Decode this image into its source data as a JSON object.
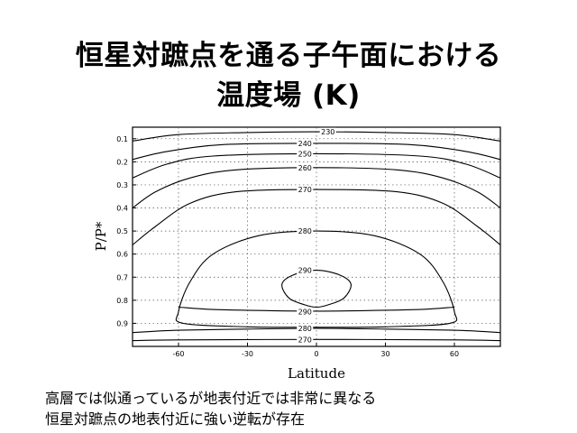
{
  "slide": {
    "title_line1": "恒星対蹠点を通る子午面における",
    "title_line2": "温度場 (K)",
    "note_line1": "高層では似通っているが地表付近では非常に異なる",
    "note_line2": "恒星対蹠点の地表付近に強い逆転が存在"
  },
  "chart_data": {
    "type": "contour",
    "title": "",
    "xlabel": "Latitude",
    "ylabel": "P/P*",
    "xlim": [
      -80,
      80
    ],
    "ylim": [
      1.0,
      0.05
    ],
    "y_inverted": true,
    "grid": true,
    "x_ticks": [
      -60,
      -30,
      0,
      30,
      60
    ],
    "y_ticks": [
      0.1,
      0.2,
      0.3,
      0.4,
      0.5,
      0.6,
      0.7,
      0.8,
      0.9
    ],
    "y_tick_labels": [
      "0.1",
      "0.2",
      "0.3",
      "0.4",
      "0.5",
      "0.6",
      "0.7",
      "0.8",
      "0.9"
    ],
    "contours": [
      {
        "level": 230,
        "label": "230",
        "points": [
          [
            -80,
            0.11
          ],
          [
            -60,
            0.082
          ],
          [
            -30,
            0.073
          ],
          [
            0,
            0.07
          ],
          [
            30,
            0.073
          ],
          [
            60,
            0.082
          ],
          [
            80,
            0.11
          ]
        ]
      },
      {
        "level": 240,
        "label": "240",
        "points": [
          [
            -80,
            0.19
          ],
          [
            -65,
            0.155
          ],
          [
            -40,
            0.125
          ],
          [
            0,
            0.12
          ],
          [
            40,
            0.125
          ],
          [
            65,
            0.155
          ],
          [
            80,
            0.19
          ]
        ]
      },
      {
        "level": 250,
        "label": "250",
        "points": [
          [
            -80,
            0.27
          ],
          [
            -65,
            0.21
          ],
          [
            -45,
            0.175
          ],
          [
            0,
            0.165
          ],
          [
            45,
            0.175
          ],
          [
            65,
            0.21
          ],
          [
            80,
            0.27
          ]
        ]
      },
      {
        "level": 260,
        "label": "260",
        "points": [
          [
            -80,
            0.4
          ],
          [
            -70,
            0.33
          ],
          [
            -55,
            0.27
          ],
          [
            -35,
            0.235
          ],
          [
            0,
            0.225
          ],
          [
            35,
            0.235
          ],
          [
            55,
            0.27
          ],
          [
            70,
            0.33
          ],
          [
            80,
            0.4
          ]
        ]
      },
      {
        "level": 270,
        "label": "270",
        "points": [
          [
            -80,
            0.56
          ],
          [
            -70,
            0.48
          ],
          [
            -55,
            0.38
          ],
          [
            -35,
            0.33
          ],
          [
            0,
            0.32
          ],
          [
            35,
            0.33
          ],
          [
            55,
            0.38
          ],
          [
            70,
            0.48
          ],
          [
            80,
            0.56
          ]
        ]
      },
      {
        "level": 280,
        "label": "280",
        "closed": true,
        "points": [
          [
            -58,
            0.9
          ],
          [
            -60,
            0.85
          ],
          [
            -55,
            0.72
          ],
          [
            -45,
            0.6
          ],
          [
            -25,
            0.52
          ],
          [
            0,
            0.5
          ],
          [
            25,
            0.52
          ],
          [
            45,
            0.6
          ],
          [
            55,
            0.72
          ],
          [
            60,
            0.85
          ],
          [
            58,
            0.9
          ],
          [
            30,
            0.915
          ],
          [
            0,
            0.917
          ],
          [
            -30,
            0.915
          ]
        ]
      },
      {
        "level": 290,
        "label": "290",
        "closed": true,
        "points": [
          [
            -15,
            0.73
          ],
          [
            -10,
            0.69
          ],
          [
            0,
            0.67
          ],
          [
            10,
            0.69
          ],
          [
            15,
            0.73
          ],
          [
            12,
            0.79
          ],
          [
            5,
            0.82
          ],
          [
            0,
            0.83
          ],
          [
            -5,
            0.82
          ],
          [
            -12,
            0.79
          ]
        ]
      },
      {
        "level": 280,
        "label": "280",
        "points": [
          [
            -80,
            0.94
          ],
          [
            -60,
            0.93
          ],
          [
            -30,
            0.925
          ],
          [
            0,
            0.922
          ],
          [
            30,
            0.925
          ],
          [
            60,
            0.93
          ],
          [
            80,
            0.94
          ]
        ]
      },
      {
        "level": 270,
        "label": "270",
        "points": [
          [
            -80,
            0.975
          ],
          [
            -60,
            0.972
          ],
          [
            0,
            0.97
          ],
          [
            60,
            0.972
          ],
          [
            80,
            0.975
          ]
        ]
      },
      {
        "level": 290,
        "label": "",
        "points": [
          [
            -60,
            0.83
          ],
          [
            -45,
            0.84
          ],
          [
            -20,
            0.845
          ],
          [
            0,
            0.847
          ],
          [
            20,
            0.845
          ],
          [
            45,
            0.84
          ],
          [
            60,
            0.83
          ]
        ]
      }
    ],
    "contour_labels": [
      {
        "text": "230",
        "x": 5,
        "y": 0.07
      },
      {
        "text": "240",
        "x": -5,
        "y": 0.12
      },
      {
        "text": "250",
        "x": -5,
        "y": 0.165
      },
      {
        "text": "260",
        "x": -5,
        "y": 0.225
      },
      {
        "text": "270",
        "x": -5,
        "y": 0.32
      },
      {
        "text": "280",
        "x": -5,
        "y": 0.5
      },
      {
        "text": "290",
        "x": -5,
        "y": 0.67
      },
      {
        "text": "290",
        "x": -5,
        "y": 0.85
      },
      {
        "text": "280",
        "x": -5,
        "y": 0.922
      },
      {
        "text": "270",
        "x": -5,
        "y": 0.97
      }
    ]
  }
}
